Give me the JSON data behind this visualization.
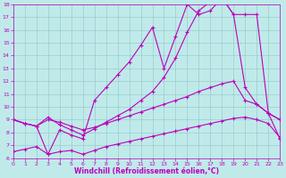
{
  "xlabel": "Windchill (Refroidissement éolien,°C)",
  "background_color": "#c0eaea",
  "line_color": "#bb00bb",
  "grid_color": "#99cccc",
  "xmin": 0,
  "xmax": 23,
  "ymin": 6,
  "ymax": 18,
  "line1_x": [
    0,
    1,
    2,
    3,
    4,
    5,
    6,
    7,
    8,
    9,
    10,
    11,
    12,
    13,
    14,
    15,
    16,
    17,
    18,
    19,
    20,
    21,
    22,
    23
  ],
  "line1_y": [
    9.0,
    8.7,
    8.5,
    6.3,
    8.2,
    7.8,
    7.5,
    10.5,
    11.5,
    12.5,
    13.5,
    14.8,
    16.2,
    13.0,
    15.5,
    18.0,
    17.2,
    17.5,
    18.5,
    17.2,
    17.2,
    17.2,
    9.5,
    9.0
  ],
  "line2_x": [
    0,
    1,
    2,
    3,
    4,
    5,
    6,
    7,
    8,
    9,
    10,
    11,
    12,
    13,
    14,
    15,
    16,
    17,
    18,
    19,
    20,
    21,
    22,
    23
  ],
  "line2_y": [
    9.0,
    8.7,
    8.5,
    9.2,
    8.6,
    8.2,
    7.8,
    8.3,
    8.8,
    9.3,
    9.8,
    10.5,
    11.2,
    12.3,
    13.8,
    15.8,
    17.5,
    18.2,
    18.5,
    17.2,
    11.5,
    10.2,
    9.5,
    9.0
  ],
  "line3_x": [
    0,
    1,
    2,
    3,
    4,
    5,
    6,
    7,
    8,
    9,
    10,
    11,
    12,
    13,
    14,
    15,
    16,
    17,
    18,
    19,
    20,
    21,
    22,
    23
  ],
  "line3_y": [
    9.0,
    8.7,
    8.5,
    9.0,
    8.8,
    8.5,
    8.2,
    8.4,
    8.7,
    9.0,
    9.3,
    9.6,
    9.9,
    10.2,
    10.5,
    10.8,
    11.2,
    11.5,
    11.8,
    12.0,
    10.5,
    10.2,
    9.5,
    7.5
  ],
  "line4_x": [
    0,
    1,
    2,
    3,
    4,
    5,
    6,
    7,
    8,
    9,
    10,
    11,
    12,
    13,
    14,
    15,
    16,
    17,
    18,
    19,
    20,
    21,
    22,
    23
  ],
  "line4_y": [
    6.5,
    6.7,
    6.9,
    6.3,
    6.5,
    6.6,
    6.3,
    6.6,
    6.9,
    7.1,
    7.3,
    7.5,
    7.7,
    7.9,
    8.1,
    8.3,
    8.5,
    8.7,
    8.9,
    9.1,
    9.2,
    9.0,
    8.7,
    7.6
  ]
}
